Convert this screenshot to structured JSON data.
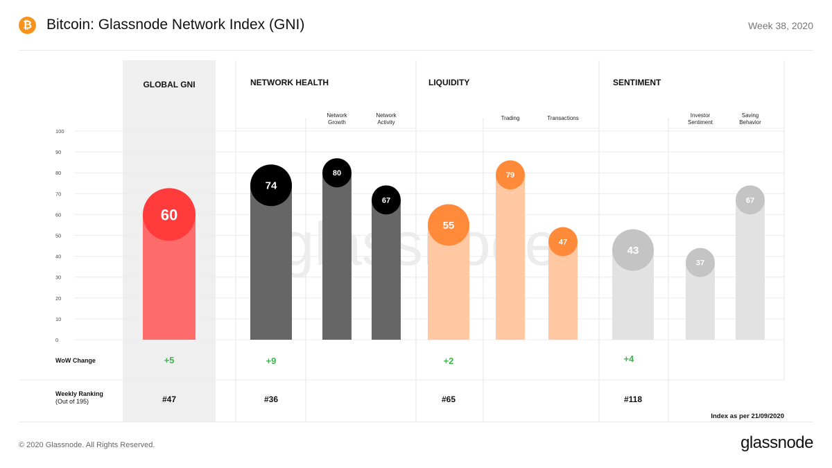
{
  "header": {
    "title": "Bitcoin: Glassnode Network Index (GNI)",
    "week": "Week 38, 2020",
    "icon": "bitcoin-icon"
  },
  "footer": {
    "copyright": "© 2020 Glassnode. All Rights Reserved.",
    "logo": "glassnode"
  },
  "chart_data": {
    "type": "bar",
    "title": "Bitcoin: Glassnode Network Index (GNI)",
    "watermark": "glassnode",
    "ylim": [
      0,
      100
    ],
    "yticks": [
      "0",
      "10",
      "20",
      "30",
      "40",
      "50",
      "60",
      "70",
      "80",
      "90",
      "100"
    ],
    "grid": true,
    "sections": [
      {
        "title": "GLOBAL GNI",
        "wow": "+5",
        "rank": "#47"
      },
      {
        "title": "NETWORK HEALTH",
        "wow": "+9",
        "rank": "#36"
      },
      {
        "title": "LIQUIDITY",
        "wow": "+2",
        "rank": "#65"
      },
      {
        "title": "SENTIMENT",
        "wow": "+4",
        "rank": "#118"
      }
    ],
    "bars": [
      {
        "section": "GLOBAL GNI",
        "label": "",
        "value": 60,
        "color": "#fe6b6b",
        "circle": "#ff3b3b"
      },
      {
        "section": "NETWORK HEALTH",
        "label": "",
        "value": 74,
        "color": "#666666",
        "circle": "#000000"
      },
      {
        "section": "NETWORK HEALTH",
        "label": "Network Growth",
        "value": 80,
        "color": "#666666",
        "circle": "#000000"
      },
      {
        "section": "NETWORK HEALTH",
        "label": "Network Activity",
        "value": 67,
        "color": "#666666",
        "circle": "#000000"
      },
      {
        "section": "LIQUIDITY",
        "label": "",
        "value": 55,
        "color": "#ffc8a3",
        "circle": "#ff8a3a"
      },
      {
        "section": "LIQUIDITY",
        "label": "Trading",
        "value": 79,
        "color": "#ffc8a3",
        "circle": "#ff8a3a"
      },
      {
        "section": "LIQUIDITY",
        "label": "Transactions",
        "value": 47,
        "color": "#ffc8a3",
        "circle": "#ff8a3a"
      },
      {
        "section": "SENTIMENT",
        "label": "",
        "value": 43,
        "color": "#e2e2e2",
        "circle": "#c4c4c4"
      },
      {
        "section": "SENTIMENT",
        "label": "Investor Sentiment",
        "value": 37,
        "color": "#e2e2e2",
        "circle": "#c4c4c4"
      },
      {
        "section": "SENTIMENT",
        "label": "Saving Behavior",
        "value": 67,
        "color": "#e2e2e2",
        "circle": "#c4c4c4"
      }
    ],
    "rows": {
      "wow_label": "WoW  Change",
      "rank_label": "Weekly Ranking",
      "rank_sub": "(Out of 195)"
    },
    "note": "Index as per 21/09/2020"
  }
}
